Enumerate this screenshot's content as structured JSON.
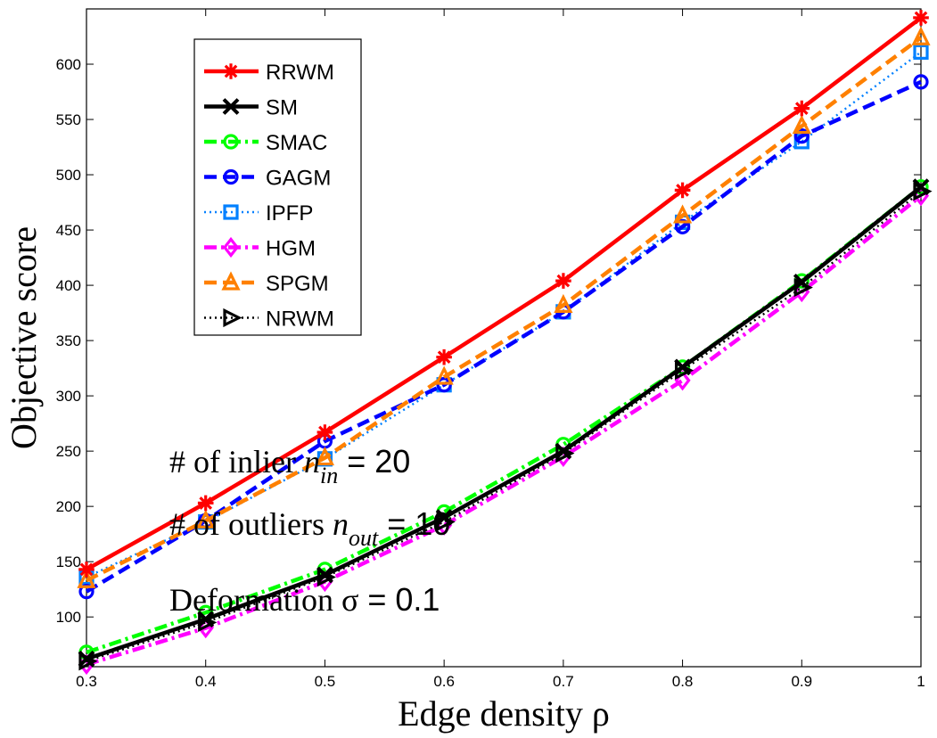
{
  "chart_data": {
    "type": "line",
    "title": "",
    "xlabel": "Edge density ρ",
    "ylabel": "Objective score",
    "xlim": [
      0.3,
      1.0
    ],
    "ylim": [
      55,
      650
    ],
    "xticks": [
      0.3,
      0.4,
      0.5,
      0.6,
      0.7,
      0.8,
      0.9,
      1.0
    ],
    "xtick_labels": [
      "0.3",
      "0.4",
      "0.5",
      "0.6",
      "0.7",
      "0.8",
      "0.9",
      "1"
    ],
    "yticks": [
      100,
      150,
      200,
      250,
      300,
      350,
      400,
      450,
      500,
      550,
      600
    ],
    "ytick_labels": [
      "100",
      "150",
      "200",
      "250",
      "300",
      "350",
      "400",
      "450",
      "500",
      "550",
      "600"
    ],
    "x": [
      0.3,
      0.4,
      0.5,
      0.6,
      0.7,
      0.8,
      0.9,
      1.0
    ],
    "legend_position": "upper-left",
    "series": [
      {
        "name": "RRWM",
        "color": "#ff0000",
        "dash": "solid",
        "marker": "star",
        "values": [
          143,
          203,
          267,
          335,
          404,
          486,
          560,
          642
        ]
      },
      {
        "name": "SM",
        "color": "#000000",
        "dash": "solid",
        "marker": "x",
        "values": [
          62,
          98,
          138,
          190,
          250,
          326,
          403,
          489
        ]
      },
      {
        "name": "SMAC",
        "color": "#00ff00",
        "dash": "dashdot",
        "marker": "circle",
        "values": [
          68,
          104,
          143,
          195,
          256,
          326,
          404,
          489
        ]
      },
      {
        "name": "GAGM",
        "color": "#0000ff",
        "dash": "dashed",
        "marker": "circle",
        "values": [
          123,
          187,
          259,
          310,
          376,
          453,
          535,
          584
        ]
      },
      {
        "name": "IPFP",
        "color": "#0080ff",
        "dash": "dotted",
        "marker": "square",
        "values": [
          136,
          186,
          243,
          310,
          376,
          457,
          530,
          611
        ]
      },
      {
        "name": "HGM",
        "color": "#ff00ff",
        "dash": "dashdot",
        "marker": "diamond",
        "values": [
          57,
          90,
          132,
          183,
          245,
          314,
          394,
          481
        ]
      },
      {
        "name": "SPGM",
        "color": "#ff8000",
        "dash": "dashed",
        "marker": "triangle",
        "values": [
          133,
          187,
          244,
          317,
          382,
          463,
          544,
          624
        ]
      },
      {
        "name": "NRWM",
        "color": "#000000",
        "dash": "dotted",
        "marker": "triangle-right",
        "values": [
          60,
          95,
          136,
          186,
          248,
          323,
          398,
          485
        ]
      }
    ],
    "annotations": [
      {
        "text": "# of inlier ",
        "symbol": "n",
        "subscript": "in",
        "value": " = 20"
      },
      {
        "text": "# of outliers ",
        "symbol": "n",
        "subscript": "out",
        "value": " = 10"
      },
      {
        "text": "Deformation ",
        "symbol": "σ",
        "subscript": "",
        "value": " = 0.1"
      }
    ]
  }
}
